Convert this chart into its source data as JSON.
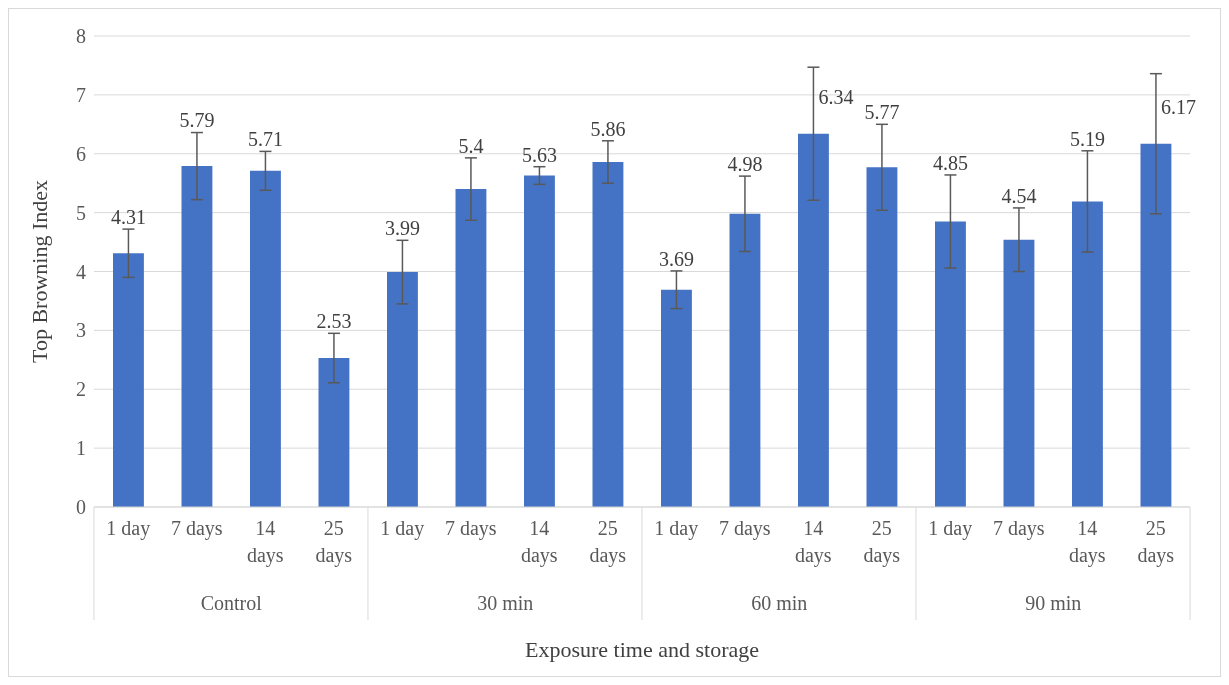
{
  "chart_data": {
    "type": "bar",
    "xlabel": "Exposure time and storage",
    "ylabel": "Top Browning Index",
    "categories": [
      "1 day",
      "7 days",
      "14 days",
      "25 days",
      "1 day",
      "7 days",
      "14 days",
      "25 days",
      "1 day",
      "7 days",
      "14 days",
      "25 days",
      "1 day",
      "7 days",
      "14 days",
      "25 days"
    ],
    "values": [
      4.31,
      5.79,
      5.71,
      2.53,
      3.99,
      5.4,
      5.63,
      5.86,
      3.69,
      4.98,
      6.34,
      5.77,
      4.85,
      4.54,
      5.19,
      6.17
    ],
    "errors": [
      0.41,
      0.57,
      0.33,
      0.42,
      0.54,
      0.53,
      0.15,
      0.36,
      0.32,
      0.64,
      1.13,
      0.73,
      0.79,
      0.54,
      0.86,
      1.19
    ],
    "color": "#4472c4",
    "data_labels": true,
    "annotations": [
      "Control",
      "30 min",
      "60 min",
      "90 min"
    ],
    "ylim": [
      0,
      8
    ],
    "yticks": [
      0,
      1,
      2,
      3,
      4,
      5,
      6,
      7,
      8
    ],
    "grid": "y"
  }
}
